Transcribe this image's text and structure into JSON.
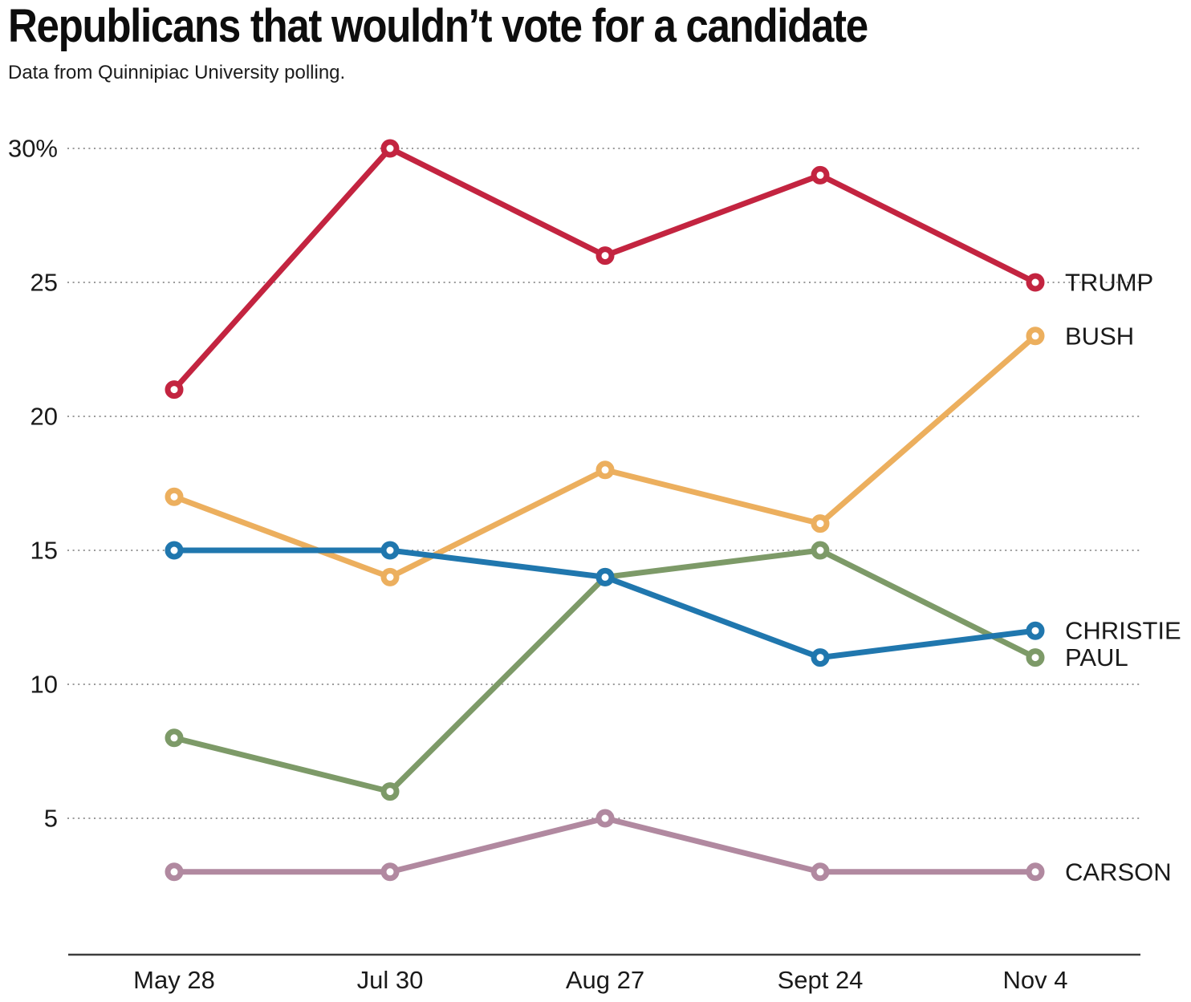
{
  "header": {
    "title": "Republicans that wouldn’t vote for a candidate",
    "subtitle": "Data from Quinnipiac University polling."
  },
  "chart_data": {
    "type": "line",
    "title": "Republicans that wouldn’t vote for a candidate",
    "subtitle": "Data from Quinnipiac University polling.",
    "xlabel": "",
    "ylabel": "",
    "categories": [
      "May 28",
      "Jul 30",
      "Aug 27",
      "Sept 24",
      "Nov 4"
    ],
    "y_ticks": {
      "values": [
        30,
        25,
        20,
        15,
        10,
        5
      ],
      "labels": [
        "30%",
        "25",
        "20",
        "15",
        "10",
        "5"
      ]
    },
    "ylim": [
      0,
      31.5
    ],
    "grid": "horizontal-dotted",
    "legend_position": "right-end-of-line",
    "series": [
      {
        "name": "TRUMP",
        "color": "#c32440",
        "values": [
          21,
          30,
          26,
          29,
          25
        ]
      },
      {
        "name": "BUSH",
        "color": "#ecaf5e",
        "values": [
          17,
          14,
          18,
          16,
          23
        ]
      },
      {
        "name": "CHRISTIE",
        "color": "#2077ae",
        "values": [
          15,
          15,
          14,
          11,
          12
        ]
      },
      {
        "name": "PAUL",
        "color": "#7d9a68",
        "values": [
          8,
          6,
          14,
          15,
          11
        ]
      },
      {
        "name": "CARSON",
        "color": "#b189a0",
        "values": [
          3,
          3,
          5,
          3,
          3
        ]
      }
    ]
  }
}
